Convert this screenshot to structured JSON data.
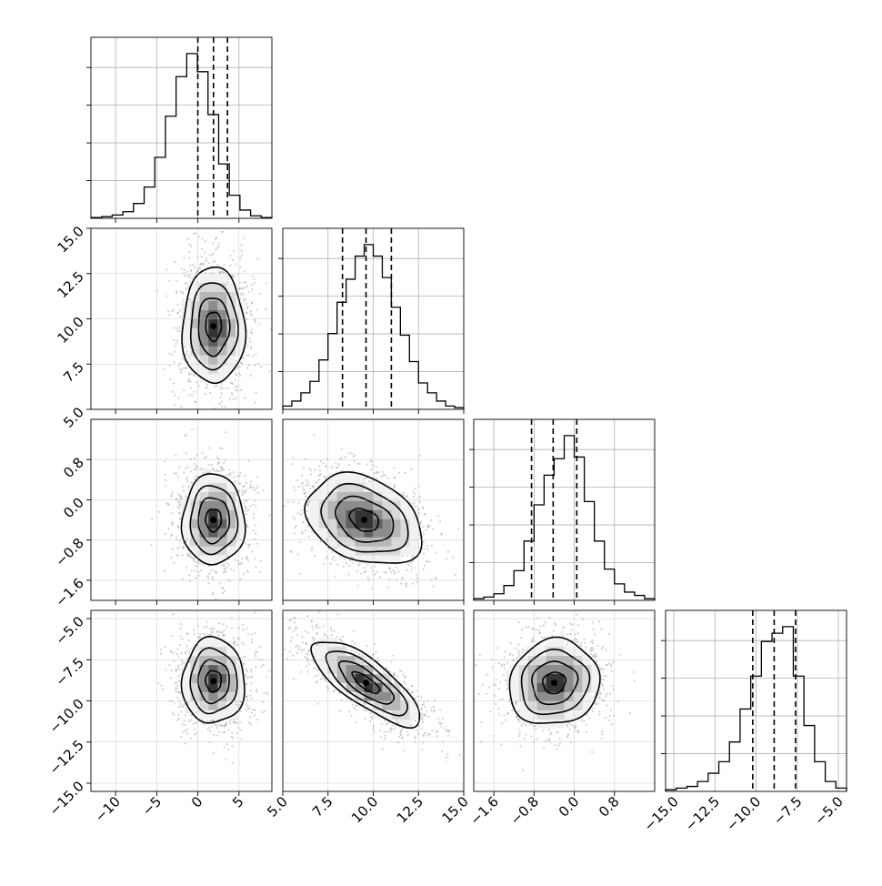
{
  "chart_data": {
    "type": "corner",
    "variables": [
      {
        "range": [
          -13,
          9
        ],
        "ticks": [
          -10,
          -5,
          0,
          5
        ],
        "tick_labels": [
          "−10",
          "−5",
          "0",
          "5"
        ],
        "hist": [
          0.005,
          0.01,
          0.02,
          0.04,
          0.09,
          0.19,
          0.37,
          0.62,
          0.86,
          1.0,
          0.89,
          0.63,
          0.33,
          0.14,
          0.05,
          0.015,
          0.005
        ],
        "quantiles": [
          0.0,
          1.9,
          3.6
        ]
      },
      {
        "range": [
          5,
          15
        ],
        "ticks": [
          5,
          7.5,
          10,
          12.5,
          15
        ],
        "tick_labels": [
          "5.0",
          "7.5",
          "10.0",
          "12.5",
          "15.0"
        ],
        "hist": [
          0.02,
          0.05,
          0.1,
          0.17,
          0.3,
          0.46,
          0.65,
          0.79,
          0.93,
          1.0,
          0.93,
          0.8,
          0.62,
          0.45,
          0.29,
          0.16,
          0.1,
          0.05,
          0.02,
          0.01
        ],
        "quantiles": [
          8.3,
          9.6,
          11.0
        ]
      },
      {
        "range": [
          -2.0,
          1.6
        ],
        "ticks": [
          -1.6,
          -0.8,
          0.0,
          0.8
        ],
        "tick_labels": [
          "−1.6",
          "−0.8",
          "0.0",
          "0.8"
        ],
        "hist": [
          0.01,
          0.02,
          0.04,
          0.09,
          0.18,
          0.36,
          0.58,
          0.76,
          0.86,
          1.0,
          0.87,
          0.6,
          0.36,
          0.19,
          0.1,
          0.05,
          0.03,
          0.01
        ],
        "quantiles": [
          -0.85,
          -0.42,
          0.05
        ]
      },
      {
        "range": [
          -15.5,
          -4.5
        ],
        "ticks": [
          -15,
          -12.5,
          -10,
          -7.5,
          -5
        ],
        "tick_labels": [
          "−15.0",
          "−12.5",
          "−10.0",
          "−7.5",
          "−5.0"
        ],
        "hist": [
          0.01,
          0.02,
          0.03,
          0.06,
          0.11,
          0.18,
          0.3,
          0.5,
          0.7,
          0.91,
          0.96,
          1.0,
          0.7,
          0.4,
          0.18,
          0.06,
          0.02
        ],
        "quantiles": [
          -10.2,
          -8.9,
          -7.6
        ]
      }
    ],
    "pairs": [
      {
        "row": 1,
        "col": 0,
        "center": [
          1.9,
          9.6
        ],
        "sd": [
          1.9,
          1.6
        ],
        "rho": 0.0
      },
      {
        "row": 2,
        "col": 0,
        "center": [
          1.9,
          -0.4
        ],
        "sd": [
          1.9,
          0.45
        ],
        "rho": 0.0
      },
      {
        "row": 2,
        "col": 1,
        "center": [
          9.5,
          -0.4
        ],
        "sd": [
          1.6,
          0.45
        ],
        "rho": -0.3
      },
      {
        "row": 3,
        "col": 0,
        "center": [
          1.9,
          -8.8
        ],
        "sd": [
          1.9,
          1.3
        ],
        "rho": 0.0
      },
      {
        "row": 3,
        "col": 1,
        "center": [
          9.6,
          -8.9
        ],
        "sd": [
          1.5,
          1.3
        ],
        "rho": -0.78
      },
      {
        "row": 3,
        "col": 2,
        "center": [
          -0.4,
          -8.9
        ],
        "sd": [
          0.45,
          1.3
        ],
        "rho": 0.08
      }
    ],
    "contour_levels": [
      0.5,
      1.0,
      1.5,
      2.0
    ],
    "grid": true,
    "title": "",
    "legend": "none"
  }
}
